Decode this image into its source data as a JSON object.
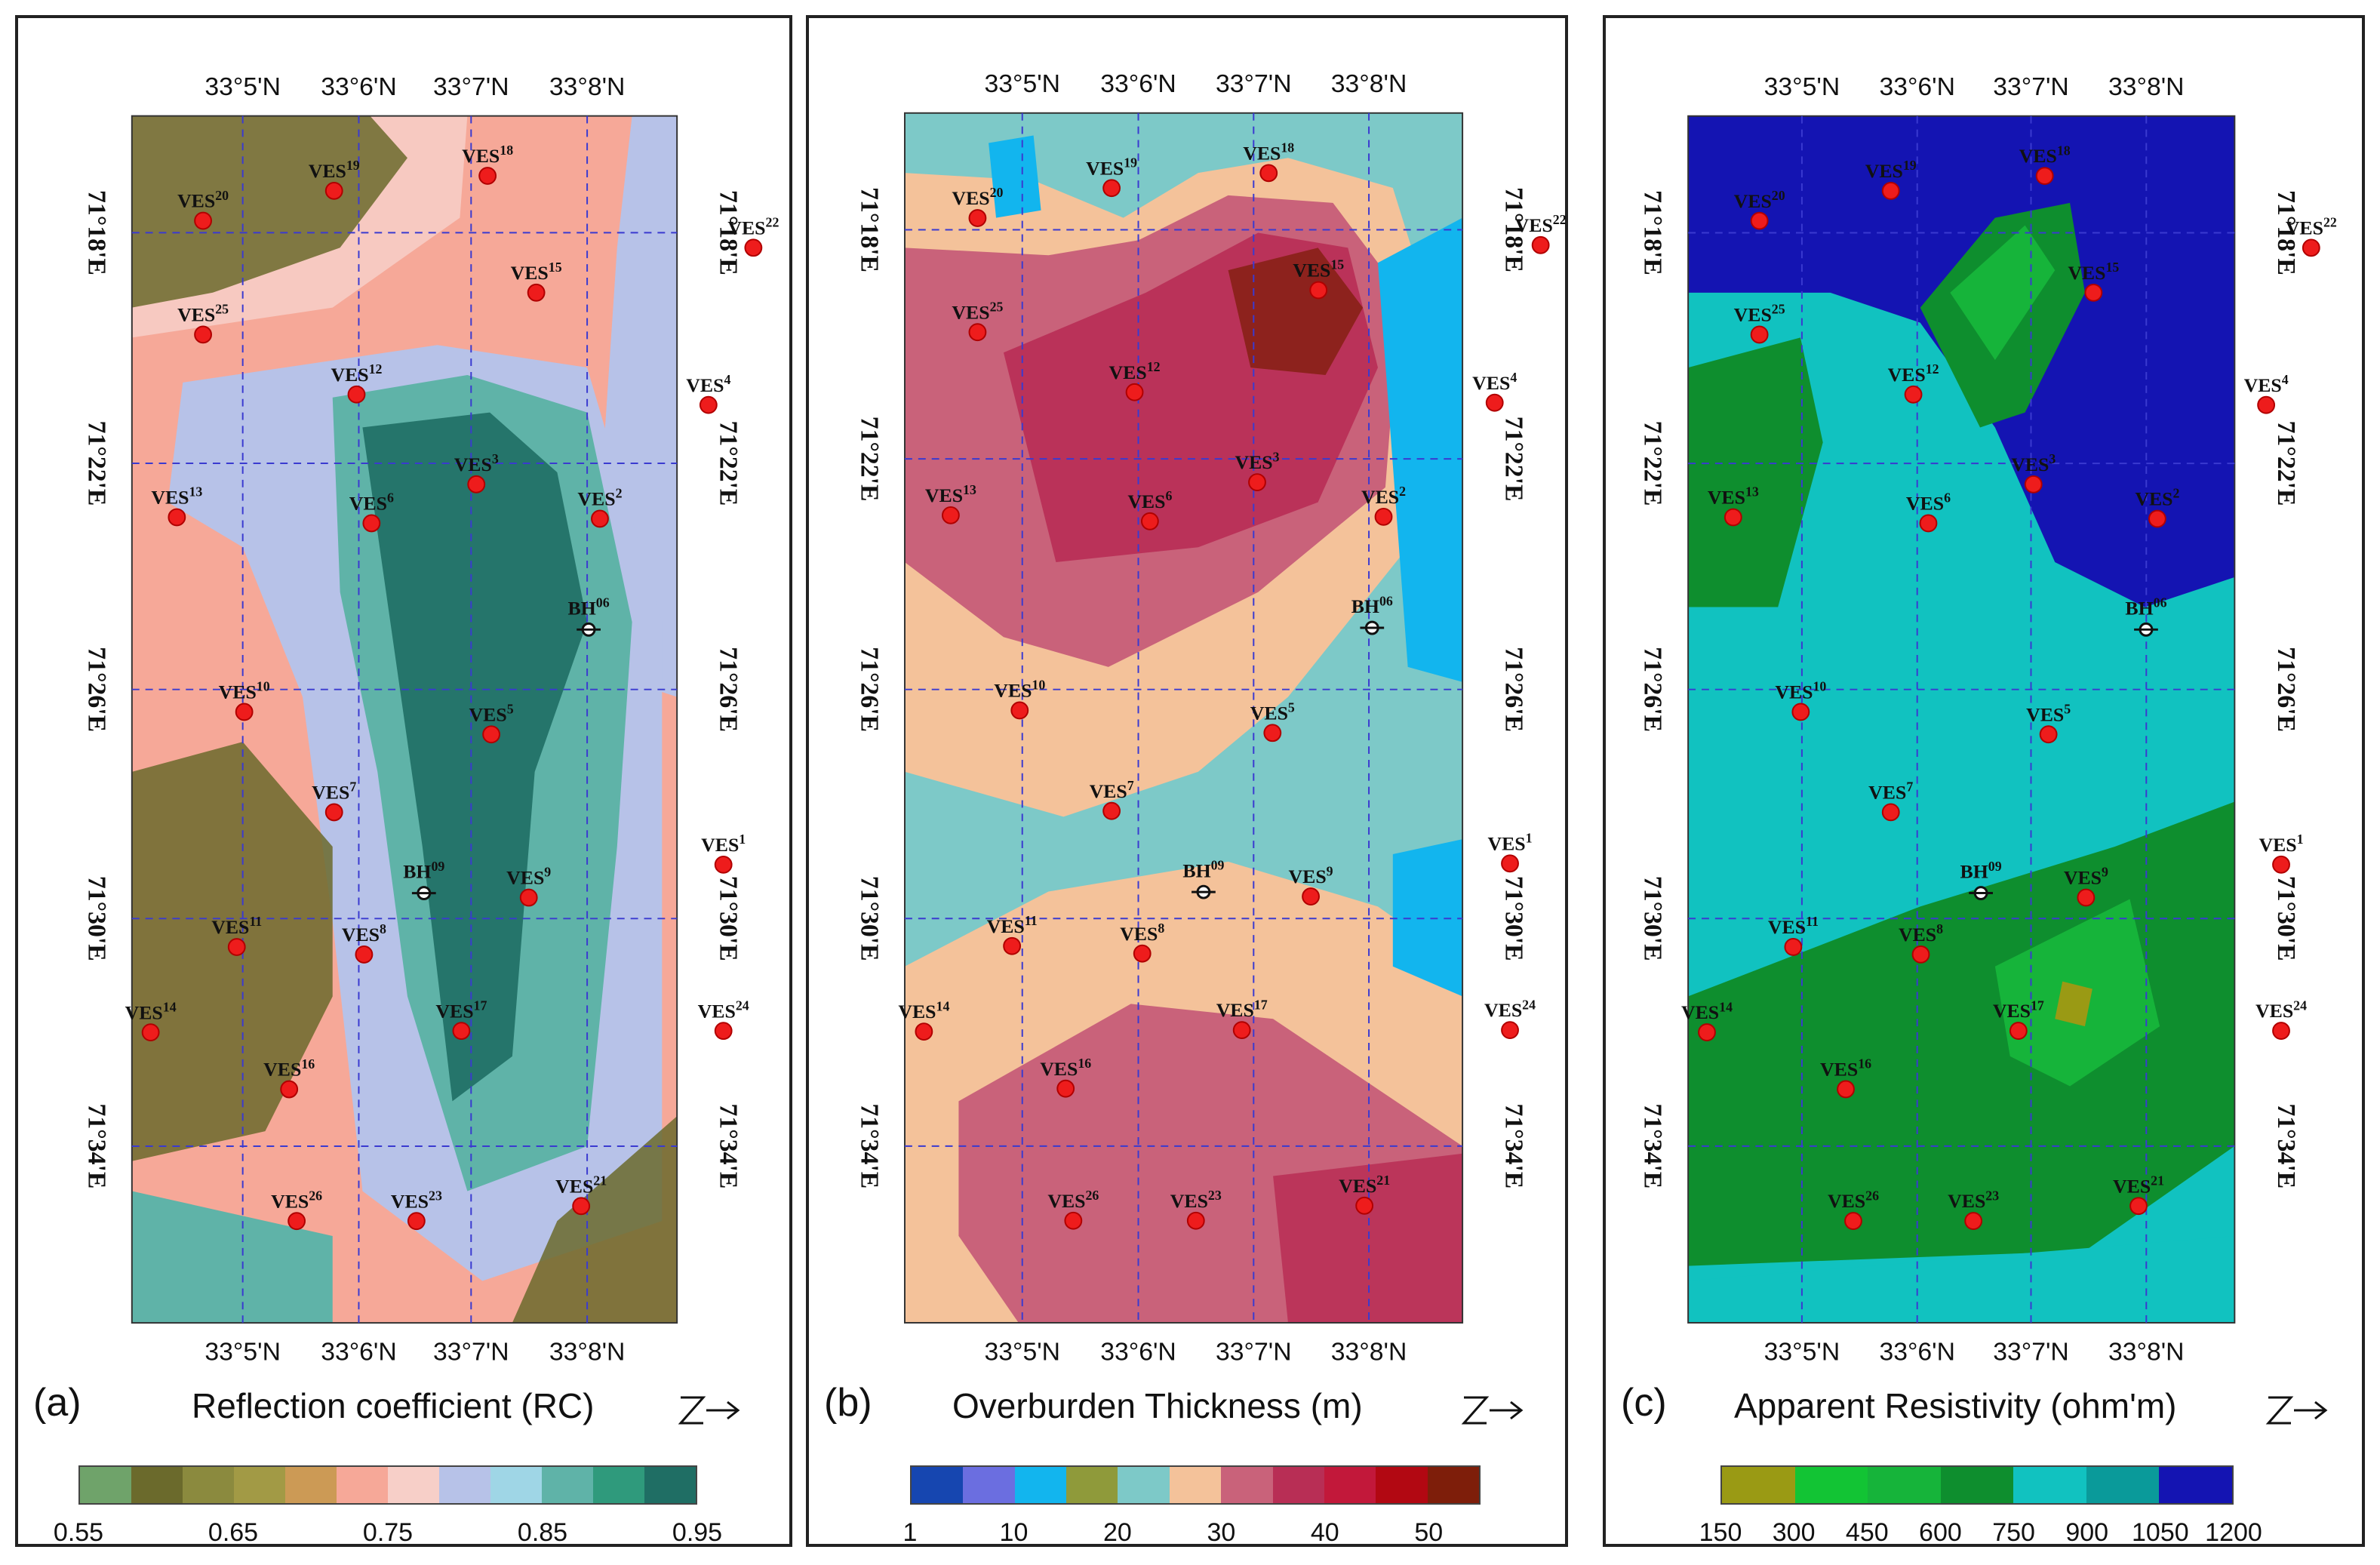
{
  "lat_labels": [
    "33°5'N",
    "33°6'N",
    "33°7'N",
    "33°8'N"
  ],
  "lon_labels": [
    "71°18'E",
    "71°22'E",
    "71°26'E",
    "71°30'E",
    "71°34'E"
  ],
  "stations": [
    {
      "id": "20",
      "label": "VES"
    },
    {
      "id": "19",
      "label": "VES"
    },
    {
      "id": "18",
      "label": "VES"
    },
    {
      "id": "22",
      "label": "VES"
    },
    {
      "id": "15",
      "label": "VES"
    },
    {
      "id": "25",
      "label": "VES"
    },
    {
      "id": "12",
      "label": "VES"
    },
    {
      "id": "4",
      "label": "VES"
    },
    {
      "id": "13",
      "label": "VES"
    },
    {
      "id": "6",
      "label": "VES"
    },
    {
      "id": "3",
      "label": "VES"
    },
    {
      "id": "2",
      "label": "VES"
    },
    {
      "id": "10",
      "label": "VES"
    },
    {
      "id": "5",
      "label": "VES"
    },
    {
      "id": "7",
      "label": "VES"
    },
    {
      "id": "1",
      "label": "VES"
    },
    {
      "id": "9",
      "label": "VES"
    },
    {
      "id": "11",
      "label": "VES"
    },
    {
      "id": "8",
      "label": "VES"
    },
    {
      "id": "14",
      "label": "VES"
    },
    {
      "id": "17",
      "label": "VES"
    },
    {
      "id": "24",
      "label": "VES"
    },
    {
      "id": "16",
      "label": "VES"
    },
    {
      "id": "26",
      "label": "VES"
    },
    {
      "id": "23",
      "label": "VES"
    },
    {
      "id": "21",
      "label": "VES"
    }
  ],
  "boreholes": [
    {
      "id": "06",
      "label": "BH"
    },
    {
      "id": "09",
      "label": "BH"
    }
  ],
  "panels": [
    {
      "id": "(a)",
      "title": "Reflection coefficient (RC)",
      "colors": [
        "#6fa36a",
        "#6b6a2c",
        "#8b8a3e",
        "#a29a45",
        "#cc9a55",
        "#f6a898",
        "#f7cfc8",
        "#b7c2e8",
        "#9fd6e6",
        "#5fb3a8",
        "#2f9a7c",
        "#1f6e64"
      ],
      "ticks": [
        "0.55",
        "0.65",
        "0.75",
        "0.85",
        "0.95"
      ],
      "north_text": "N"
    },
    {
      "id": "(b)",
      "title": "Overburden Thickness (m)",
      "colors": [
        "#1646b0",
        "#6b6ee0",
        "#12b5ee",
        "#8f9a3a",
        "#7dc9c8",
        "#f4c29a",
        "#c9627a",
        "#b82e55",
        "#c2183a",
        "#b20812",
        "#7e1e0a"
      ],
      "ticks": [
        "1",
        "10",
        "20",
        "30",
        "40",
        "50"
      ],
      "north_text": "N"
    },
    {
      "id": "(c)",
      "title": "Apparent Resistivity (ohm'm)",
      "colors": [
        "#9a9a14",
        "#12c434",
        "#16b43a",
        "#0e8e2e",
        "#11c2c0",
        "#0a9a9a",
        "#1414b2"
      ],
      "ticks": [
        "150",
        "300",
        "450",
        "600",
        "750",
        "900",
        "1050",
        "1200"
      ],
      "north_text": "N"
    }
  ]
}
